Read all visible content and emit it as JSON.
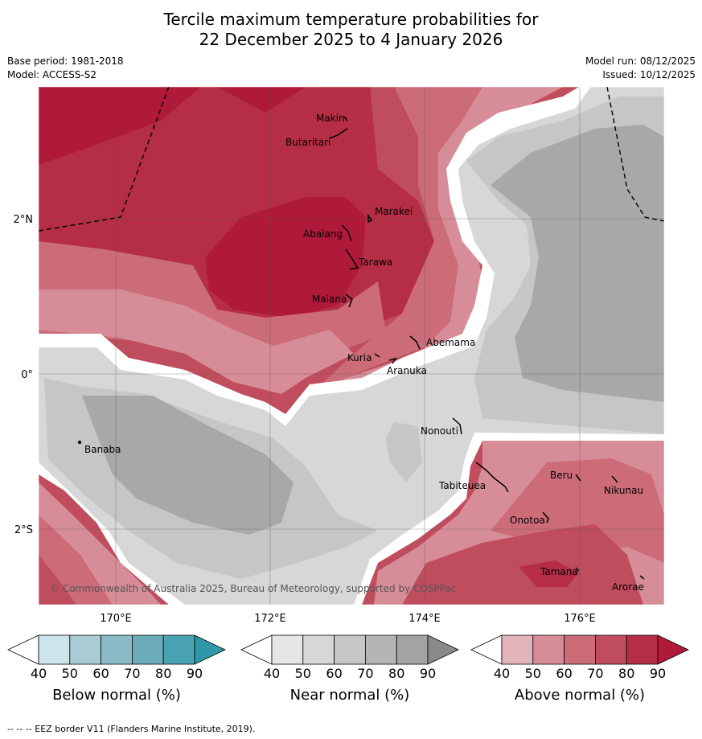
{
  "title_line1": "Tercile maximum temperature probabilities for",
  "title_line2": "22 December 2025 to 4 January 2026",
  "base_period": "Base period: 1981-2018",
  "model": "Model: ACCESS-S2",
  "model_run": "Model run: 08/12/2025",
  "issued": "Issued: 10/12/2025",
  "copyright": "© Commonwealth of Australia 2025, Bureau of Meteorology, supported by COSPPac",
  "lat_labels": [
    "2°N",
    "0°",
    "2°S"
  ],
  "lon_labels": [
    "170°E",
    "172°E",
    "174°E",
    "176°E"
  ],
  "places": [
    "Makin",
    "Butaritari",
    "Marakei",
    "Abaiang",
    "Tarawa",
    "Maiana",
    "Abemama",
    "Kuria",
    "Aranuka",
    "Banaba",
    "Nonouti",
    "Tabiteuea",
    "Beru",
    "Nikunau",
    "Onotoa",
    "Tamana",
    "Arorae"
  ],
  "legend": {
    "ticks": [
      "40",
      "50",
      "60",
      "70",
      "80",
      "90"
    ],
    "below": {
      "label": "Below normal (%)",
      "colors": [
        "#ffffff",
        "#cde4ea",
        "#a9ccd4",
        "#8bbbc6",
        "#6cabb8",
        "#4aa3b2",
        "#2f97a8"
      ]
    },
    "near": {
      "label": "Near normal (%)",
      "colors": [
        "#ffffff",
        "#e6e6e6",
        "#d7d7d7",
        "#c6c6c6",
        "#b5b5b5",
        "#a3a3a3",
        "#8a8a8a"
      ]
    },
    "above": {
      "label": "Above normal (%)",
      "colors": [
        "#ffffff",
        "#e2b5bd",
        "#d78d97",
        "#cc6c79",
        "#c04d5d",
        "#b52e45",
        "#b01a3a"
      ]
    }
  },
  "footer": "--  --  -- EEZ border V11 (Flanders Marine Institute, 2019)."
}
